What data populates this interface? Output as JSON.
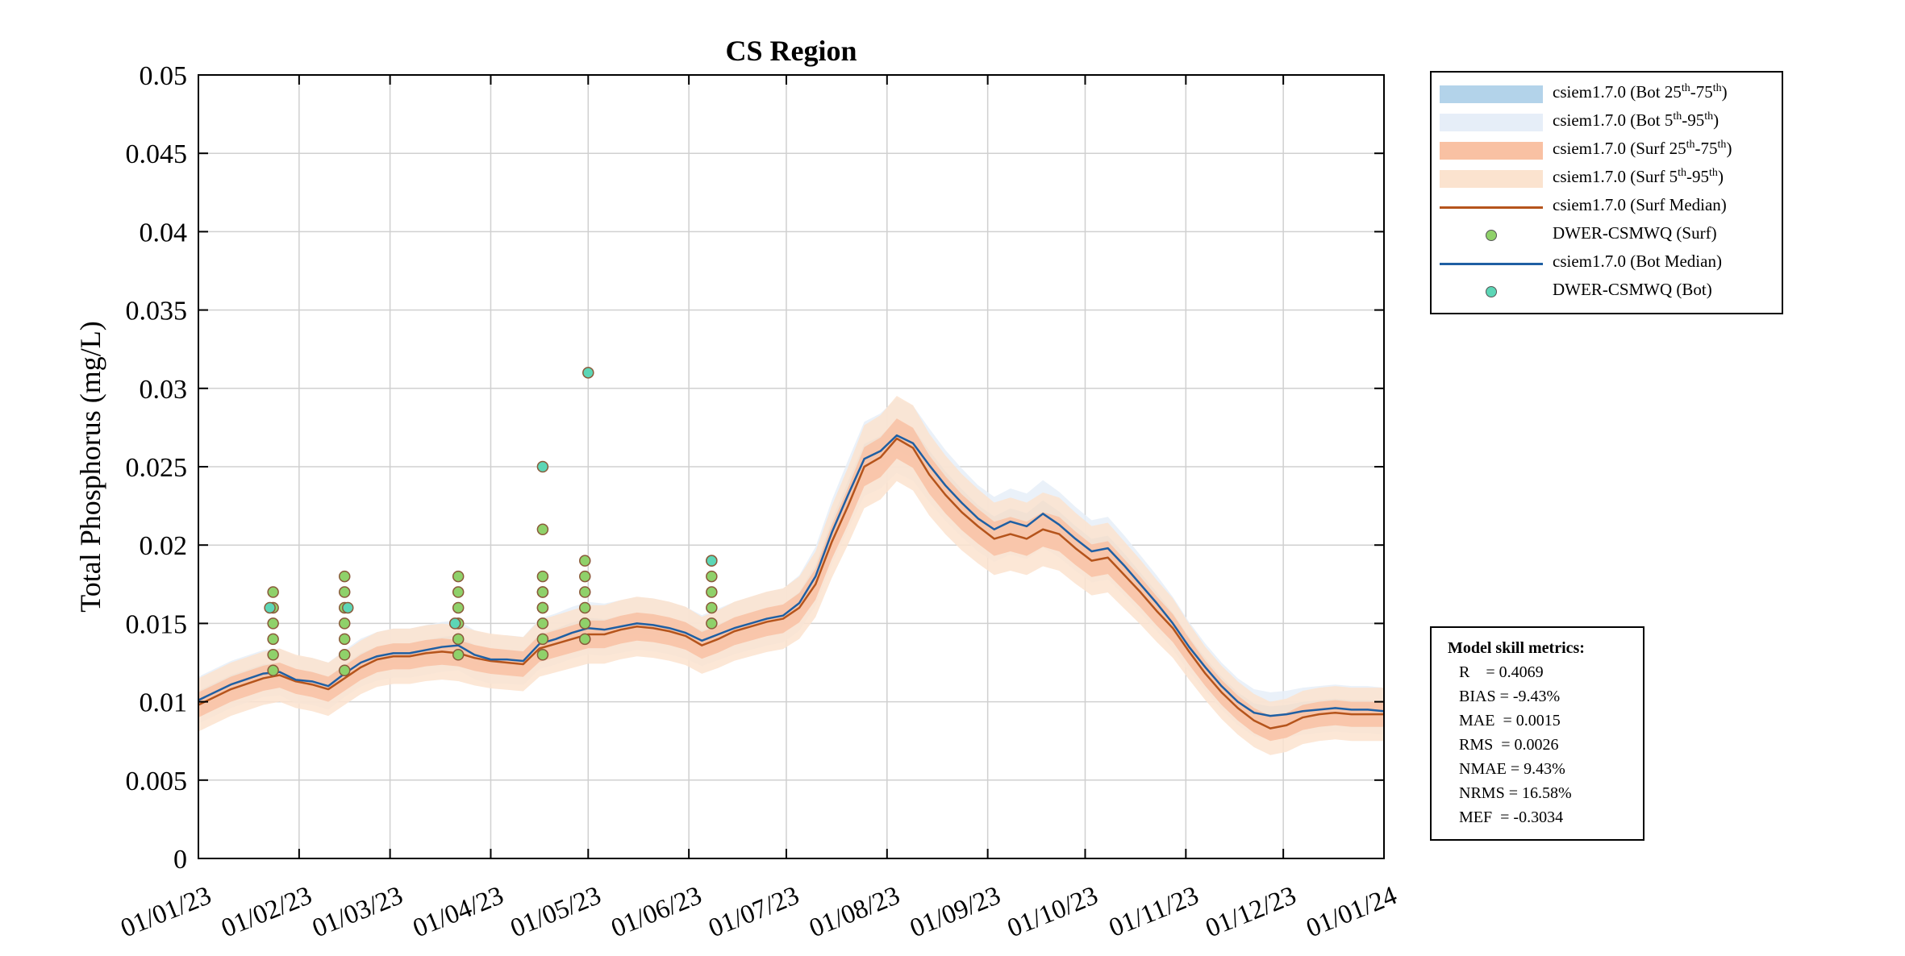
{
  "chart_data": {
    "type": "line",
    "title": "CS Region",
    "ylabel": "Total Phosphorus (mg/L)",
    "xlabel": "",
    "ylim": [
      0,
      0.05
    ],
    "yticks": [
      "0",
      "0.005",
      "0.01",
      "0.015",
      "0.02",
      "0.025",
      "0.03",
      "0.035",
      "0.04",
      "0.045",
      "0.05"
    ],
    "ytick_values": [
      0,
      0.005,
      0.01,
      0.015,
      0.02,
      0.025,
      0.03,
      0.035,
      0.04,
      0.045,
      0.05
    ],
    "xlim_days": [
      0,
      365
    ],
    "xticks": [
      "01/01/23",
      "01/02/23",
      "01/03/23",
      "01/04/23",
      "01/05/23",
      "01/06/23",
      "01/07/23",
      "01/08/23",
      "01/09/23",
      "01/10/23",
      "01/11/23",
      "01/12/23",
      "01/01/24"
    ],
    "xtick_days": [
      0,
      31,
      59,
      90,
      120,
      151,
      181,
      212,
      243,
      273,
      304,
      334,
      365
    ],
    "grid": true,
    "legend_position": "outside-top-right",
    "series": [
      {
        "name": "csiem1.7.0 (Surf Median)",
        "kind": "line",
        "color": "#b5541c",
        "x_days": [
          0,
          10,
          20,
          25,
          30,
          35,
          40,
          45,
          50,
          55,
          60,
          65,
          70,
          75,
          80,
          85,
          90,
          95,
          100,
          105,
          110,
          115,
          120,
          125,
          130,
          135,
          140,
          145,
          150,
          155,
          160,
          165,
          170,
          175,
          180,
          185,
          190,
          195,
          200,
          205,
          210,
          215,
          220,
          225,
          230,
          235,
          240,
          245,
          250,
          255,
          260,
          265,
          270,
          275,
          280,
          285,
          290,
          295,
          300,
          305,
          310,
          315,
          320,
          325,
          330,
          335,
          340,
          345,
          350,
          355,
          360,
          365
        ],
        "values": [
          0.0098,
          0.0108,
          0.0115,
          0.0117,
          0.0113,
          0.0111,
          0.0108,
          0.0115,
          0.0122,
          0.0127,
          0.0129,
          0.0129,
          0.0131,
          0.0132,
          0.0131,
          0.0128,
          0.0126,
          0.0125,
          0.0124,
          0.0134,
          0.0137,
          0.014,
          0.0143,
          0.0143,
          0.0146,
          0.0148,
          0.0147,
          0.0145,
          0.0142,
          0.0136,
          0.014,
          0.0145,
          0.0148,
          0.0151,
          0.0153,
          0.016,
          0.0175,
          0.0202,
          0.0225,
          0.025,
          0.0256,
          0.0268,
          0.0262,
          0.0245,
          0.0232,
          0.0221,
          0.0212,
          0.0204,
          0.0207,
          0.0204,
          0.021,
          0.0207,
          0.0198,
          0.019,
          0.0192,
          0.0181,
          0.017,
          0.0158,
          0.0147,
          0.0132,
          0.0118,
          0.0106,
          0.0096,
          0.0088,
          0.0083,
          0.0085,
          0.009,
          0.0092,
          0.0093,
          0.0092,
          0.0092,
          0.0092
        ]
      },
      {
        "name": "csiem1.7.0 (Bot Median)",
        "kind": "line",
        "color": "#1f5fa3",
        "x_days": [
          0,
          10,
          20,
          25,
          30,
          35,
          40,
          45,
          50,
          55,
          60,
          65,
          70,
          75,
          80,
          85,
          90,
          95,
          100,
          105,
          110,
          115,
          120,
          125,
          130,
          135,
          140,
          145,
          150,
          155,
          160,
          165,
          170,
          175,
          180,
          185,
          190,
          195,
          200,
          205,
          210,
          215,
          220,
          225,
          230,
          235,
          240,
          245,
          250,
          255,
          260,
          265,
          270,
          275,
          280,
          285,
          290,
          295,
          300,
          305,
          310,
          315,
          320,
          325,
          330,
          335,
          340,
          345,
          350,
          355,
          360,
          365
        ],
        "values": [
          0.0101,
          0.0111,
          0.0118,
          0.0119,
          0.0114,
          0.0113,
          0.011,
          0.0118,
          0.0125,
          0.0129,
          0.0131,
          0.0131,
          0.0133,
          0.0135,
          0.0136,
          0.013,
          0.0127,
          0.0127,
          0.0126,
          0.0137,
          0.014,
          0.0144,
          0.0147,
          0.0146,
          0.0148,
          0.015,
          0.0149,
          0.0147,
          0.0144,
          0.0139,
          0.0143,
          0.0147,
          0.015,
          0.0153,
          0.0155,
          0.0163,
          0.018,
          0.0208,
          0.0232,
          0.0255,
          0.026,
          0.027,
          0.0265,
          0.0251,
          0.0238,
          0.0227,
          0.0217,
          0.021,
          0.0215,
          0.0212,
          0.022,
          0.0213,
          0.0204,
          0.0196,
          0.0198,
          0.0187,
          0.0175,
          0.0163,
          0.015,
          0.0135,
          0.0122,
          0.011,
          0.01,
          0.0093,
          0.0091,
          0.0092,
          0.0094,
          0.0095,
          0.0096,
          0.0095,
          0.0095,
          0.0094
        ]
      },
      {
        "name": "DWER-CSMWQ (Surf)",
        "kind": "scatter",
        "color": "#8fd16a",
        "x_days": [
          23,
          23,
          23,
          23,
          23,
          23,
          45,
          45,
          45,
          45,
          45,
          45,
          45,
          80,
          80,
          80,
          80,
          80,
          80,
          106,
          106,
          106,
          106,
          106,
          106,
          106,
          106,
          106,
          119,
          119,
          119,
          119,
          119,
          119,
          158,
          158,
          158,
          158,
          158
        ],
        "values": [
          0.017,
          0.016,
          0.015,
          0.014,
          0.013,
          0.012,
          0.018,
          0.017,
          0.016,
          0.015,
          0.014,
          0.013,
          0.012,
          0.018,
          0.017,
          0.016,
          0.015,
          0.014,
          0.013,
          0.021,
          0.017,
          0.016,
          0.015,
          0.014,
          0.013,
          0.018,
          0.017,
          0.016,
          0.019,
          0.018,
          0.017,
          0.015,
          0.014,
          0.016,
          0.018,
          0.017,
          0.016,
          0.015,
          0.019
        ]
      },
      {
        "name": "DWER-CSMWQ (Bot)",
        "kind": "scatter",
        "color": "#5cd6b6",
        "x_days": [
          22,
          46,
          79,
          106,
          120,
          158
        ],
        "values": [
          0.016,
          0.016,
          0.015,
          0.025,
          0.031,
          0.019
        ]
      }
    ],
    "bands": [
      {
        "name": "csiem1.7.0 (Bot 5th-95th)",
        "color": "#e6eef8",
        "based_on": "csiem1.7.0 (Bot Median)",
        "lower_offset": -0.0015,
        "upper_offset": 0.0015
      },
      {
        "name": "csiem1.7.0 (Bot 25th-75th)",
        "color": "#b3d3ea",
        "based_on": "csiem1.7.0 (Bot Median)",
        "lower_offset": -0.0006,
        "upper_offset": 0.0006
      },
      {
        "name": "csiem1.7.0 (Surf 5th-95th)",
        "color": "#fbe3cf",
        "based_on": "csiem1.7.0 (Surf Median)",
        "lower_offset": -0.0017,
        "upper_offset": 0.0017
      },
      {
        "name": "csiem1.7.0 (Surf 25th-75th)",
        "color": "#f9c1a3",
        "based_on": "csiem1.7.0 (Surf Median)",
        "lower_offset": -0.0008,
        "upper_offset": 0.0008
      }
    ]
  },
  "legend": {
    "items": [
      {
        "label_prefix": "csiem1.7.0 (Bot 25",
        "sup1": "th",
        "mid": "-75",
        "sup2": "th",
        "suffix": ")",
        "kind": "swatch",
        "color": "#b3d3ea"
      },
      {
        "label_prefix": "csiem1.7.0 (Bot 5",
        "sup1": "th",
        "mid": "-95",
        "sup2": "th",
        "suffix": ")",
        "kind": "swatch",
        "color": "#e6eef8"
      },
      {
        "label_prefix": "csiem1.7.0 (Surf 25",
        "sup1": "th",
        "mid": "-75",
        "sup2": "th",
        "suffix": ")",
        "kind": "swatch",
        "color": "#f9c1a3"
      },
      {
        "label_prefix": "csiem1.7.0 (Surf 5",
        "sup1": "th",
        "mid": "-95",
        "sup2": "th",
        "suffix": ")",
        "kind": "swatch",
        "color": "#fbe3cf"
      },
      {
        "label": "csiem1.7.0 (Surf Median)",
        "kind": "line",
        "color": "#b5541c"
      },
      {
        "label": "DWER-CSMWQ (Surf)",
        "kind": "dot",
        "color": "#8fd16a"
      },
      {
        "label": "csiem1.7.0 (Bot Median)",
        "kind": "line",
        "color": "#1f5fa3"
      },
      {
        "label": "DWER-CSMWQ (Bot)",
        "kind": "dot",
        "color": "#5cd6b6"
      }
    ]
  },
  "metrics": {
    "title": "Model skill metrics:",
    "lines": [
      "R    = 0.4069",
      "BIAS = -9.43%",
      "MAE  = 0.0015",
      "RMS  = 0.0026",
      "NMAE = 9.43%",
      "NRMS = 16.58%",
      "MEF  = -0.3034"
    ]
  }
}
